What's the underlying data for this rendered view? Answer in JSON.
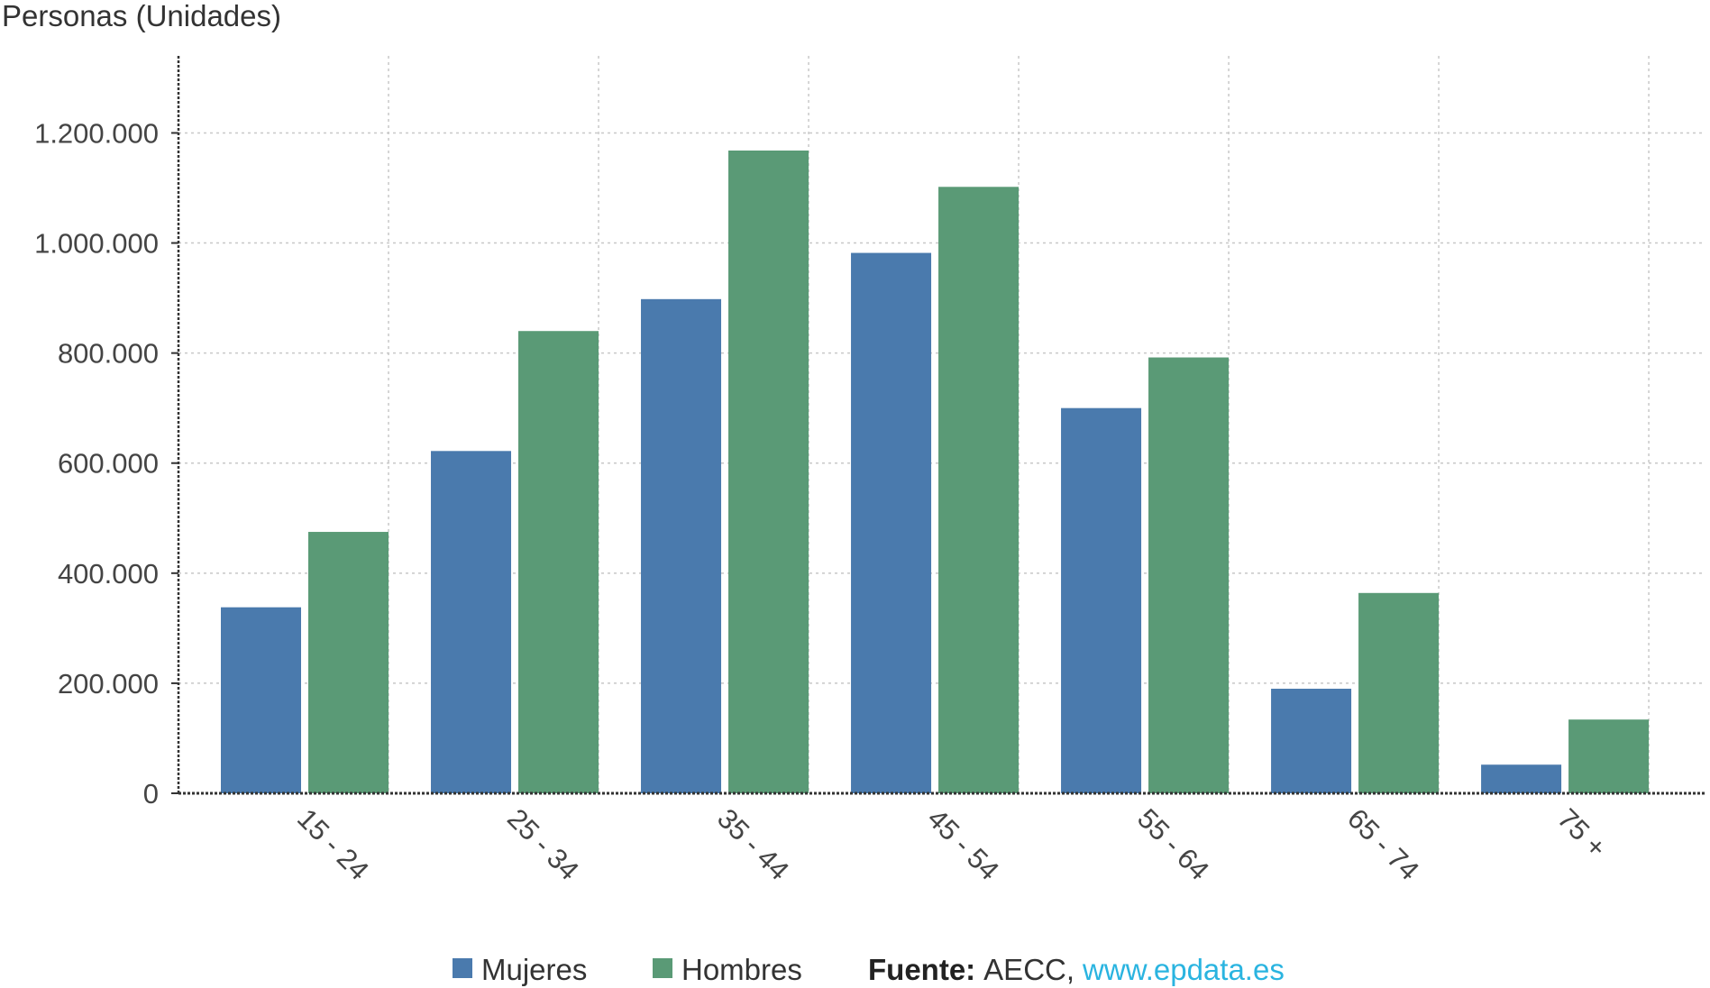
{
  "chart_data": {
    "type": "bar",
    "ylabel": "Personas (Unidades)",
    "categories": [
      "15 - 24",
      "25 - 34",
      "35 - 44",
      "45 - 54",
      "55 - 64",
      "65 - 74",
      "75 +"
    ],
    "series": [
      {
        "name": "Mujeres",
        "color": "#4a7aad",
        "values": [
          338000,
          622000,
          898000,
          982000,
          700000,
          190000,
          52000
        ]
      },
      {
        "name": "Hombres",
        "color": "#5a9a76",
        "values": [
          475000,
          840000,
          1168000,
          1102000,
          792000,
          364000,
          134000
        ]
      }
    ],
    "ylim": [
      0,
      1340000
    ],
    "yticks": [
      0,
      200000,
      400000,
      600000,
      800000,
      1000000,
      1200000
    ],
    "ytick_labels": [
      "0",
      "200.000",
      "400.000",
      "600.000",
      "800.000",
      "1.000.000",
      "1.200.000"
    ],
    "grid": true,
    "legend_position": "bottom",
    "source": {
      "label": "Fuente:",
      "name": "AECC,",
      "link": "www.epdata.es"
    }
  }
}
